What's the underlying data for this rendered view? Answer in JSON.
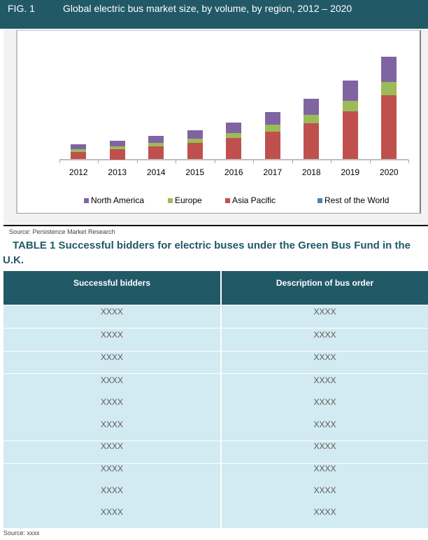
{
  "figure": {
    "label": "FIG. 1",
    "title": "Global electric bus market size, by volume, by region, 2012 – 2020",
    "source": "Source: Persistence Market Research"
  },
  "colors": {
    "header_bg": "#215967",
    "north_america": "#8064A2",
    "europe": "#9BBB59",
    "asia_pacific": "#C0504D",
    "rest_of_world": "#4F81BD",
    "table_row_bg": "#D2EAF1"
  },
  "chart_data": {
    "type": "bar",
    "stacked": true,
    "title": "Global electric bus market size, by volume, by region, 2012 – 2020",
    "xlabel": "",
    "ylabel": "",
    "units": "relative (no y-axis shown)",
    "grid": false,
    "legend_position": "bottom",
    "categories": [
      "2012",
      "2013",
      "2014",
      "2015",
      "2016",
      "2017",
      "2018",
      "2019",
      "2020"
    ],
    "series": [
      {
        "name": "Asia Pacific",
        "color": "#C0504D",
        "values": [
          10.8,
          14.5,
          18.2,
          23.2,
          30.2,
          39.8,
          51.8,
          68.8,
          91.8
        ]
      },
      {
        "name": "Europe",
        "color": "#9BBB59",
        "values": [
          3.7,
          4.0,
          5.3,
          6.6,
          7.6,
          9.4,
          11.7,
          14.7,
          18.4
        ]
      },
      {
        "name": "North America",
        "color": "#8064A2",
        "values": [
          7.0,
          8.0,
          10.0,
          12.0,
          15.0,
          18.3,
          23.3,
          29.0,
          36.6
        ]
      },
      {
        "name": "Rest of the World",
        "color": "#4F81BD",
        "values": [
          0,
          0,
          0,
          0,
          0,
          0,
          0,
          0,
          0
        ]
      }
    ],
    "legend": [
      "North America",
      "Europe",
      "Asia Pacific",
      "Rest of the World"
    ]
  },
  "table": {
    "title": "TABLE 1 Successful bidders for electric buses under the Green Bus Fund in the U.K.",
    "headers": [
      "Successful bidders",
      "Description of bus order"
    ],
    "rows": [
      [
        "XXXX",
        "XXXX"
      ],
      [
        "XXXX",
        "XXXX"
      ],
      [
        "XXXX",
        "XXXX"
      ],
      [
        "XXXX",
        "XXXX"
      ],
      [
        "XXXX",
        "XXXX"
      ],
      [
        "XXXX",
        "XXXX"
      ],
      [
        "XXXX",
        "XXXX"
      ],
      [
        "XXXX",
        "XXXX"
      ],
      [
        "XXXX",
        "XXXX"
      ],
      [
        "XXXX",
        "XXXX"
      ]
    ],
    "source": "Source: xxxx"
  }
}
